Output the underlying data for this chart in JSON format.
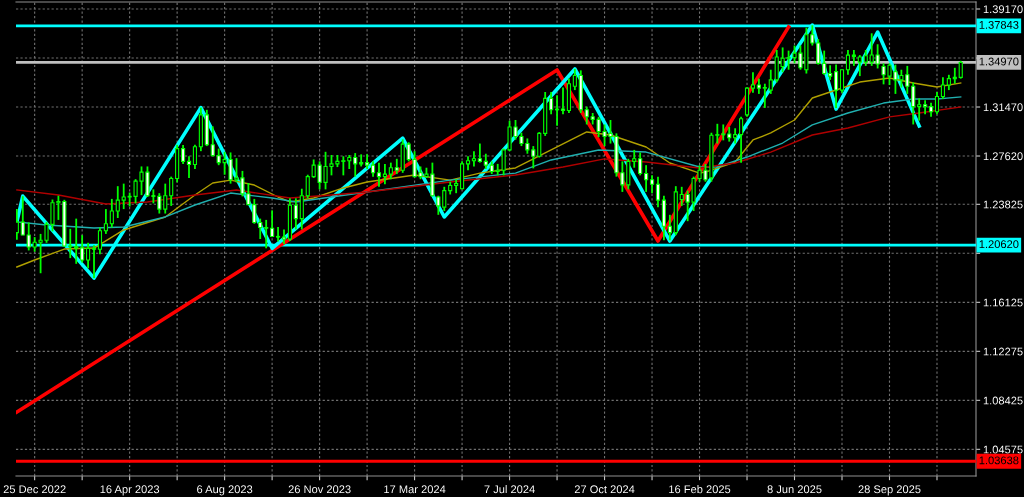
{
  "chart_data": {
    "type": "candlestick",
    "xlim": [
      "2022-12-03",
      "2026-01-08"
    ],
    "ylim": [
      1.0248,
      1.3972
    ],
    "xticks": [
      {
        "value": "2022-12-25",
        "label": "25 Dec 2022"
      },
      {
        "value": "2023-02-19",
        "label": null
      },
      {
        "value": "2023-04-16",
        "label": "16 Apr 2023"
      },
      {
        "value": "2023-06-11",
        "label": null
      },
      {
        "value": "2023-08-06",
        "label": "6 Aug 2023"
      },
      {
        "value": "2023-10-01",
        "label": null
      },
      {
        "value": "2023-11-26",
        "label": "26 Nov 2023"
      },
      {
        "value": "2024-01-21",
        "label": null
      },
      {
        "value": "2024-03-17",
        "label": "17 Mar 2024"
      },
      {
        "value": "2024-05-12",
        "label": null
      },
      {
        "value": "2024-07-07",
        "label": "7 Jul 2024"
      },
      {
        "value": "2024-09-01",
        "label": null
      },
      {
        "value": "2024-10-27",
        "label": "27 Oct 2024"
      },
      {
        "value": "2024-12-22",
        "label": null
      },
      {
        "value": "2025-02-16",
        "label": "16 Feb 2025"
      },
      {
        "value": "2025-04-13",
        "label": null
      },
      {
        "value": "2025-06-08",
        "label": "8 Jun 2025"
      },
      {
        "value": "2025-08-03",
        "label": null
      },
      {
        "value": "2025-09-28",
        "label": "28 Sep 2025"
      },
      {
        "value": "2025-11-23",
        "label": null
      }
    ],
    "yticks": [
      {
        "value": 1.3917,
        "label": "1.39170"
      },
      {
        "value": 1.3532,
        "label": null
      },
      {
        "value": 1.3147,
        "label": "1.31470"
      },
      {
        "value": 1.2762,
        "label": "1.27620"
      },
      {
        "value": 1.23825,
        "label": "1.23825"
      },
      {
        "value": 1.19975,
        "label": null
      },
      {
        "value": 1.16125,
        "label": "1.16125"
      },
      {
        "value": 1.12275,
        "label": "1.12275"
      },
      {
        "value": 1.08425,
        "label": "1.08425"
      },
      {
        "value": 1.04575,
        "label": "1.04575"
      }
    ],
    "grid": true,
    "ref_lines": [
      {
        "axis": "y",
        "value": 1.37843,
        "label": "1.37843",
        "color": "#00ffff"
      },
      {
        "axis": "y",
        "value": 1.3497,
        "label": "1.34970",
        "color": "#c0c0c0"
      },
      {
        "axis": "y",
        "value": 1.2062,
        "label": "1.20620",
        "color": "#00ffff"
      },
      {
        "axis": "y",
        "value": 1.03638,
        "label": "1.03638",
        "color": "#ff0000"
      }
    ],
    "series": [
      {
        "type": "line",
        "color": "#ff0000",
        "line_style": "solid",
        "x": [
          "2022-12-04",
          "2024-09-01",
          "2024-12-29",
          "2025-06-01"
        ],
        "values": [
          1.075,
          1.3438,
          1.2094,
          1.3776
        ]
      },
      {
        "type": "line",
        "color": "#00ffff",
        "line_style": "solid",
        "x": [
          "2022-12-04",
          "2022-12-11",
          "2023-03-05",
          "2023-07-09",
          "2023-10-01",
          "2024-03-03",
          "2024-04-21",
          "2024-09-22",
          "2025-01-12",
          "2025-06-29",
          "2025-07-27",
          "2025-09-14",
          "2025-11-02"
        ],
        "values": [
          1.2244,
          1.2447,
          1.1803,
          1.3142,
          1.2037,
          1.2903,
          1.2283,
          1.3446,
          1.2094,
          1.3791,
          1.3131,
          1.3736,
          1.2998
        ]
      },
      {
        "type": "line",
        "color": "#b0a000",
        "line_style": "solid",
        "x": [
          "2022-12-04",
          "2022-12-25",
          "2023-01-29",
          "2023-03-05",
          "2023-04-09",
          "2023-05-28",
          "2023-07-02",
          "2023-07-23",
          "2023-08-13",
          "2023-09-10",
          "2023-10-08",
          "2023-10-22",
          "2023-11-19",
          "2023-12-24",
          "2024-01-21",
          "2024-03-17",
          "2024-04-28",
          "2024-06-02",
          "2024-07-14",
          "2024-08-18",
          "2024-10-06",
          "2024-11-03",
          "2024-12-15",
          "2025-01-12",
          "2025-02-16",
          "2025-02-23",
          "2025-03-30",
          "2025-04-20",
          "2025-05-11",
          "2025-06-08",
          "2025-06-29",
          "2025-07-20",
          "2025-08-24",
          "2025-09-28",
          "2025-10-26",
          "2025-11-23",
          "2025-12-21"
        ],
        "values": [
          1.189,
          1.1945,
          1.2031,
          1.2039,
          1.2181,
          1.2283,
          1.2456,
          1.255,
          1.2573,
          1.2534,
          1.244,
          1.2401,
          1.2432,
          1.2511,
          1.2558,
          1.2613,
          1.2573,
          1.2628,
          1.2668,
          1.2786,
          1.2951,
          1.2927,
          1.2833,
          1.2707,
          1.2628,
          1.2636,
          1.2715,
          1.2888,
          1.2943,
          1.3045,
          1.3218,
          1.3265,
          1.3343,
          1.3375,
          1.3336,
          1.3304,
          1.3336
        ]
      },
      {
        "type": "line",
        "color": "#20b0b0",
        "line_style": "solid",
        "x": [
          "2022-12-04",
          "2023-01-08",
          "2023-03-05",
          "2023-04-09",
          "2023-05-28",
          "2023-07-02",
          "2023-08-13",
          "2023-10-01",
          "2023-10-29",
          "2023-12-10",
          "2024-01-21",
          "2024-04-28",
          "2024-07-14",
          "2024-08-25",
          "2024-10-20",
          "2024-12-15",
          "2025-02-16",
          "2025-03-09",
          "2025-04-13",
          "2025-05-25",
          "2025-06-29",
          "2025-08-10",
          "2025-09-21",
          "2025-10-26",
          "2025-11-23",
          "2025-12-21"
        ],
        "values": [
          1.2244,
          1.222,
          1.2196,
          1.2204,
          1.2283,
          1.2377,
          1.2471,
          1.2432,
          1.2401,
          1.244,
          1.2479,
          1.2573,
          1.2628,
          1.2731,
          1.2809,
          1.2793,
          1.2676,
          1.2676,
          1.2754,
          1.2864,
          1.3006,
          1.31,
          1.3178,
          1.321,
          1.321,
          1.3226
        ]
      },
      {
        "type": "line",
        "color": "#b00000",
        "line_style": "solid",
        "x": [
          "2022-12-04",
          "2023-01-22",
          "2023-03-19",
          "2023-05-07",
          "2023-07-02",
          "2023-08-20",
          "2023-10-22",
          "2023-12-10",
          "2024-01-21",
          "2024-04-28",
          "2024-07-14",
          "2024-09-08",
          "2024-10-27",
          "2024-12-15",
          "2025-02-16",
          "2025-03-30",
          "2025-05-11",
          "2025-06-29",
          "2025-08-10",
          "2025-09-28",
          "2025-11-02",
          "2025-12-21"
        ],
        "values": [
          1.2495,
          1.2456,
          1.2385,
          1.2401,
          1.2456,
          1.2495,
          1.2432,
          1.2456,
          1.2479,
          1.2558,
          1.2613,
          1.2676,
          1.2739,
          1.2715,
          1.2668,
          1.2707,
          1.2793,
          1.2927,
          1.2982,
          1.3069,
          1.31,
          1.3147
        ]
      },
      {
        "type": "candlestick",
        "color": "#00ff00",
        "x": [
          "2022-12-04",
          "2022-12-11",
          "2022-12-18",
          "2022-12-25",
          "2023-01-01",
          "2023-01-08",
          "2023-01-15",
          "2023-01-22",
          "2023-01-29",
          "2023-02-05",
          "2023-02-12",
          "2023-02-19",
          "2023-02-26",
          "2023-03-05",
          "2023-03-12",
          "2023-03-19",
          "2023-03-26",
          "2023-04-02",
          "2023-04-09",
          "2023-04-16",
          "2023-04-23",
          "2023-04-30",
          "2023-05-07",
          "2023-05-14",
          "2023-05-21",
          "2023-05-28",
          "2023-06-04",
          "2023-06-11",
          "2023-06-18",
          "2023-06-25",
          "2023-07-02",
          "2023-07-09",
          "2023-07-16",
          "2023-07-23",
          "2023-07-30",
          "2023-08-06",
          "2023-08-13",
          "2023-08-20",
          "2023-08-27",
          "2023-09-03",
          "2023-09-10",
          "2023-09-17",
          "2023-09-24",
          "2023-10-01",
          "2023-10-08",
          "2023-10-15",
          "2023-10-22",
          "2023-10-29",
          "2023-11-05",
          "2023-11-12",
          "2023-11-19",
          "2023-11-26",
          "2023-12-03",
          "2023-12-10",
          "2023-12-17",
          "2023-12-24",
          "2023-12-31",
          "2024-01-07",
          "2024-01-14",
          "2024-01-21",
          "2024-01-28",
          "2024-02-04",
          "2024-02-11",
          "2024-02-18",
          "2024-02-25",
          "2024-03-03",
          "2024-03-10",
          "2024-03-17",
          "2024-03-24",
          "2024-03-31",
          "2024-04-07",
          "2024-04-14",
          "2024-04-21",
          "2024-04-28",
          "2024-05-05",
          "2024-05-12",
          "2024-05-19",
          "2024-05-26",
          "2024-06-02",
          "2024-06-09",
          "2024-06-16",
          "2024-06-23",
          "2024-06-30",
          "2024-07-07",
          "2024-07-14",
          "2024-07-21",
          "2024-07-28",
          "2024-08-04",
          "2024-08-11",
          "2024-08-18",
          "2024-08-25",
          "2024-09-01",
          "2024-09-08",
          "2024-09-15",
          "2024-09-22",
          "2024-09-29",
          "2024-10-06",
          "2024-10-13",
          "2024-10-20",
          "2024-10-27",
          "2024-11-03",
          "2024-11-10",
          "2024-11-17",
          "2024-11-24",
          "2024-12-01",
          "2024-12-08",
          "2024-12-15",
          "2024-12-22",
          "2024-12-29",
          "2025-01-05",
          "2025-01-12",
          "2025-01-19",
          "2025-01-26",
          "2025-02-02",
          "2025-02-09",
          "2025-02-16",
          "2025-02-23",
          "2025-03-02",
          "2025-03-09",
          "2025-03-16",
          "2025-03-23",
          "2025-03-30",
          "2025-04-06",
          "2025-04-13",
          "2025-04-20",
          "2025-04-27",
          "2025-05-04",
          "2025-05-11",
          "2025-05-18",
          "2025-05-25",
          "2025-06-01",
          "2025-06-08",
          "2025-06-15",
          "2025-06-22",
          "2025-06-29",
          "2025-07-06",
          "2025-07-13",
          "2025-07-20",
          "2025-07-27",
          "2025-08-03",
          "2025-08-10",
          "2025-08-17",
          "2025-08-24",
          "2025-08-31",
          "2025-09-07",
          "2025-09-14",
          "2025-09-21",
          "2025-09-28",
          "2025-10-05",
          "2025-10-12",
          "2025-10-19",
          "2025-10-26",
          "2025-11-02",
          "2025-11-09",
          "2025-11-16",
          "2025-11-23",
          "2025-11-30",
          "2025-12-07",
          "2025-12-14",
          "2025-12-21"
        ],
        "ohlc": [
          [
            1.216,
            1.2345,
            1.2105,
            1.2243
          ],
          [
            1.2243,
            1.2446,
            1.214,
            1.2141
          ],
          [
            1.2141,
            1.224,
            1.202,
            1.2047
          ],
          [
            1.2047,
            1.2125,
            1.201,
            1.2085
          ],
          [
            1.2085,
            1.215,
            1.1841,
            1.21
          ],
          [
            1.21,
            1.2245,
            1.208,
            1.2225
          ],
          [
            1.2225,
            1.242,
            1.217,
            1.2395
          ],
          [
            1.2395,
            1.245,
            1.226,
            1.2405
          ],
          [
            1.2405,
            1.2418,
            1.205,
            1.2055
          ],
          [
            1.2055,
            1.219,
            1.196,
            1.205
          ],
          [
            1.205,
            1.227,
            1.1915,
            1.204
          ],
          [
            1.204,
            1.214,
            1.1925,
            1.1945
          ],
          [
            1.1945,
            1.208,
            1.188,
            1.2035
          ],
          [
            1.2035,
            1.206,
            1.1803,
            1.203
          ],
          [
            1.203,
            1.22,
            1.199,
            1.2175
          ],
          [
            1.2175,
            1.2345,
            1.215,
            1.223
          ],
          [
            1.223,
            1.2425,
            1.22,
            1.233
          ],
          [
            1.233,
            1.2525,
            1.2275,
            1.2415
          ],
          [
            1.2415,
            1.2545,
            1.2345,
            1.244
          ],
          [
            1.244,
            1.2475,
            1.2365,
            1.2445
          ],
          [
            1.2445,
            1.258,
            1.239,
            1.2565
          ],
          [
            1.2565,
            1.268,
            1.2455,
            1.2635
          ],
          [
            1.2635,
            1.268,
            1.244,
            1.245
          ],
          [
            1.245,
            1.25,
            1.239,
            1.2445
          ],
          [
            1.2445,
            1.247,
            1.231,
            1.2345
          ],
          [
            1.2345,
            1.2545,
            1.231,
            1.245
          ],
          [
            1.245,
            1.26,
            1.237,
            1.2585
          ],
          [
            1.2585,
            1.285,
            1.2555,
            1.282
          ],
          [
            1.282,
            1.2848,
            1.27,
            1.272
          ],
          [
            1.272,
            1.276,
            1.259,
            1.2695
          ],
          [
            1.2695,
            1.285,
            1.266,
            1.2835
          ],
          [
            1.2835,
            1.3142,
            1.28,
            1.3085
          ],
          [
            1.3085,
            1.3125,
            1.284,
            1.285
          ],
          [
            1.285,
            1.2995,
            1.276,
            1.2765
          ],
          [
            1.2765,
            1.282,
            1.269,
            1.271
          ],
          [
            1.271,
            1.2795,
            1.2615,
            1.2735
          ],
          [
            1.2735,
            1.279,
            1.2545,
            1.2575
          ],
          [
            1.2575,
            1.2745,
            1.2555,
            1.259
          ],
          [
            1.259,
            1.2645,
            1.2445,
            1.2465
          ],
          [
            1.2465,
            1.255,
            1.238,
            1.238
          ],
          [
            1.238,
            1.2425,
            1.223,
            1.224
          ],
          [
            1.224,
            1.227,
            1.211,
            1.22
          ],
          [
            1.22,
            1.226,
            1.2037,
            1.2195
          ],
          [
            1.2195,
            1.2335,
            1.2125,
            1.213
          ],
          [
            1.213,
            1.2205,
            1.209,
            1.2125
          ],
          [
            1.2125,
            1.2185,
            1.207,
            1.211
          ],
          [
            1.211,
            1.243,
            1.2095,
            1.2375
          ],
          [
            1.2375,
            1.243,
            1.2185,
            1.227
          ],
          [
            1.227,
            1.2505,
            1.2185,
            1.245
          ],
          [
            1.245,
            1.2615,
            1.243,
            1.26
          ],
          [
            1.26,
            1.2735,
            1.259,
            1.269
          ],
          [
            1.269,
            1.272,
            1.25,
            1.2555
          ],
          [
            1.2555,
            1.2795,
            1.25,
            1.268
          ],
          [
            1.268,
            1.277,
            1.261,
            1.27
          ],
          [
            1.27,
            1.277,
            1.2675,
            1.272
          ],
          [
            1.272,
            1.276,
            1.261,
            1.2725
          ],
          [
            1.2725,
            1.277,
            1.266,
            1.275
          ],
          [
            1.275,
            1.2785,
            1.26,
            1.27
          ],
          [
            1.27,
            1.2775,
            1.268,
            1.271
          ],
          [
            1.271,
            1.2775,
            1.266,
            1.269
          ],
          [
            1.269,
            1.272,
            1.26,
            1.263
          ],
          [
            1.263,
            1.271,
            1.252,
            1.26
          ],
          [
            1.26,
            1.27,
            1.254,
            1.262
          ],
          [
            1.262,
            1.271,
            1.258,
            1.267
          ],
          [
            1.267,
            1.274,
            1.262,
            1.265
          ],
          [
            1.265,
            1.2893,
            1.263,
            1.2855
          ],
          [
            1.2855,
            1.287,
            1.272,
            1.2735
          ],
          [
            1.2735,
            1.28,
            1.2595,
            1.26
          ],
          [
            1.263,
            1.268,
            1.258,
            1.26
          ],
          [
            1.26,
            1.267,
            1.259,
            1.262
          ],
          [
            1.262,
            1.271,
            1.2445,
            1.245
          ],
          [
            1.244,
            1.245,
            1.23,
            1.237
          ],
          [
            1.236,
            1.252,
            1.233,
            1.249
          ],
          [
            1.249,
            1.256,
            1.246,
            1.253
          ],
          [
            1.253,
            1.258,
            1.247,
            1.2545
          ],
          [
            1.2505,
            1.272,
            1.25,
            1.27
          ],
          [
            1.27,
            1.276,
            1.265,
            1.2725
          ],
          [
            1.2725,
            1.28,
            1.268,
            1.274
          ],
          [
            1.274,
            1.286,
            1.271,
            1.272
          ],
          [
            1.272,
            1.278,
            1.266,
            1.269
          ],
          [
            1.269,
            1.272,
            1.262,
            1.264
          ],
          [
            1.264,
            1.27,
            1.261,
            1.265
          ],
          [
            1.265,
            1.282,
            1.261,
            1.281
          ],
          [
            1.281,
            1.304,
            1.28,
            1.299
          ],
          [
            1.299,
            1.3045,
            1.289,
            1.2915
          ],
          [
            1.2915,
            1.2945,
            1.284,
            1.286
          ],
          [
            1.286,
            1.29,
            1.278,
            1.281
          ],
          [
            1.281,
            1.284,
            1.2665,
            1.276
          ],
          [
            1.276,
            1.295,
            1.275,
            1.294
          ],
          [
            1.294,
            1.3265,
            1.292,
            1.3215
          ],
          [
            1.3215,
            1.3265,
            1.309,
            1.3125
          ],
          [
            1.3125,
            1.324,
            1.3,
            1.313
          ],
          [
            1.313,
            1.33,
            1.309,
            1.312
          ],
          [
            1.312,
            1.337,
            1.31,
            1.333
          ],
          [
            1.331,
            1.3446,
            1.328,
            1.3395
          ],
          [
            1.3395,
            1.3435,
            1.31,
            1.3125
          ],
          [
            1.3125,
            1.315,
            1.301,
            1.307
          ],
          [
            1.307,
            1.31,
            1.301,
            1.305
          ],
          [
            1.305,
            1.307,
            1.291,
            1.2955
          ],
          [
            1.2955,
            1.301,
            1.284,
            1.2915
          ],
          [
            1.294,
            1.3045,
            1.286,
            1.2915
          ],
          [
            1.2915,
            1.294,
            1.26,
            1.263
          ],
          [
            1.263,
            1.272,
            1.248,
            1.2535
          ],
          [
            1.2535,
            1.274,
            1.25,
            1.272
          ],
          [
            1.272,
            1.281,
            1.267,
            1.274
          ],
          [
            1.274,
            1.279,
            1.261,
            1.2625
          ],
          [
            1.2625,
            1.269,
            1.248,
            1.2575
          ],
          [
            1.2575,
            1.261,
            1.247,
            1.254
          ],
          [
            1.254,
            1.26,
            1.236,
            1.2415
          ],
          [
            1.2415,
            1.245,
            1.21,
            1.221
          ],
          [
            1.221,
            1.23,
            1.21,
            1.216
          ],
          [
            1.216,
            1.2525,
            1.214,
            1.248
          ],
          [
            1.242,
            1.252,
            1.237,
            1.246
          ],
          [
            1.246,
            1.249,
            1.225,
            1.24
          ],
          [
            1.24,
            1.26,
            1.233,
            1.2585
          ],
          [
            1.2585,
            1.269,
            1.256,
            1.265
          ],
          [
            1.265,
            1.27,
            1.256,
            1.2575
          ],
          [
            1.259,
            1.2945,
            1.256,
            1.2925
          ],
          [
            1.2925,
            1.3015,
            1.286,
            1.293
          ],
          [
            1.293,
            1.301,
            1.2885,
            1.2935
          ],
          [
            1.2935,
            1.299,
            1.2875,
            1.2905
          ],
          [
            1.2905,
            1.298,
            1.286,
            1.293
          ],
          [
            1.293,
            1.307,
            1.271,
            1.3055
          ],
          [
            1.3085,
            1.33,
            1.307,
            1.3295
          ],
          [
            1.3295,
            1.342,
            1.326,
            1.332
          ],
          [
            1.332,
            1.337,
            1.325,
            1.3295
          ],
          [
            1.3295,
            1.333,
            1.314,
            1.33
          ],
          [
            1.328,
            1.344,
            1.325,
            1.336
          ],
          [
            1.336,
            1.3595,
            1.334,
            1.354
          ],
          [
            1.3465,
            1.3615,
            1.342,
            1.353
          ],
          [
            1.353,
            1.359,
            1.344,
            1.3535
          ],
          [
            1.3535,
            1.363,
            1.349,
            1.357
          ],
          [
            1.357,
            1.363,
            1.344,
            1.3455
          ],
          [
            1.344,
            1.377,
            1.341,
            1.3715
          ],
          [
            1.3715,
            1.3789,
            1.363,
            1.365
          ],
          [
            1.365,
            1.368,
            1.348,
            1.349
          ],
          [
            1.349,
            1.359,
            1.34,
            1.341
          ],
          [
            1.341,
            1.3475,
            1.336,
            1.339
          ],
          [
            1.3425,
            1.348,
            1.314,
            1.328
          ],
          [
            1.328,
            1.344,
            1.326,
            1.344
          ],
          [
            1.344,
            1.3595,
            1.34,
            1.3555
          ],
          [
            1.3555,
            1.3595,
            1.347,
            1.3545
          ],
          [
            1.35,
            1.3555,
            1.339,
            1.354
          ],
          [
            1.35,
            1.3595,
            1.347,
            1.355
          ],
          [
            1.35,
            1.3726,
            1.347,
            1.3556
          ],
          [
            1.3556,
            1.364,
            1.345,
            1.3485
          ],
          [
            1.3465,
            1.349,
            1.3325,
            1.34
          ],
          [
            1.339,
            1.349,
            1.332,
            1.3475
          ],
          [
            1.3425,
            1.348,
            1.325,
            1.336
          ],
          [
            1.336,
            1.344,
            1.33,
            1.3395
          ],
          [
            1.34,
            1.347,
            1.325,
            1.331
          ],
          [
            1.331,
            1.334,
            1.301,
            1.315
          ],
          [
            1.315,
            1.3215,
            1.304,
            1.3165
          ],
          [
            1.3165,
            1.32,
            1.309,
            1.315
          ],
          [
            1.315,
            1.318,
            1.307,
            1.311
          ],
          [
            1.311,
            1.3265,
            1.309,
            1.323
          ],
          [
            1.323,
            1.338,
            1.321,
            1.332
          ],
          [
            1.332,
            1.34,
            1.328,
            1.337
          ],
          [
            1.337,
            1.3455,
            1.333,
            1.338
          ],
          [
            1.338,
            1.351,
            1.337,
            1.3497
          ]
        ]
      }
    ]
  }
}
